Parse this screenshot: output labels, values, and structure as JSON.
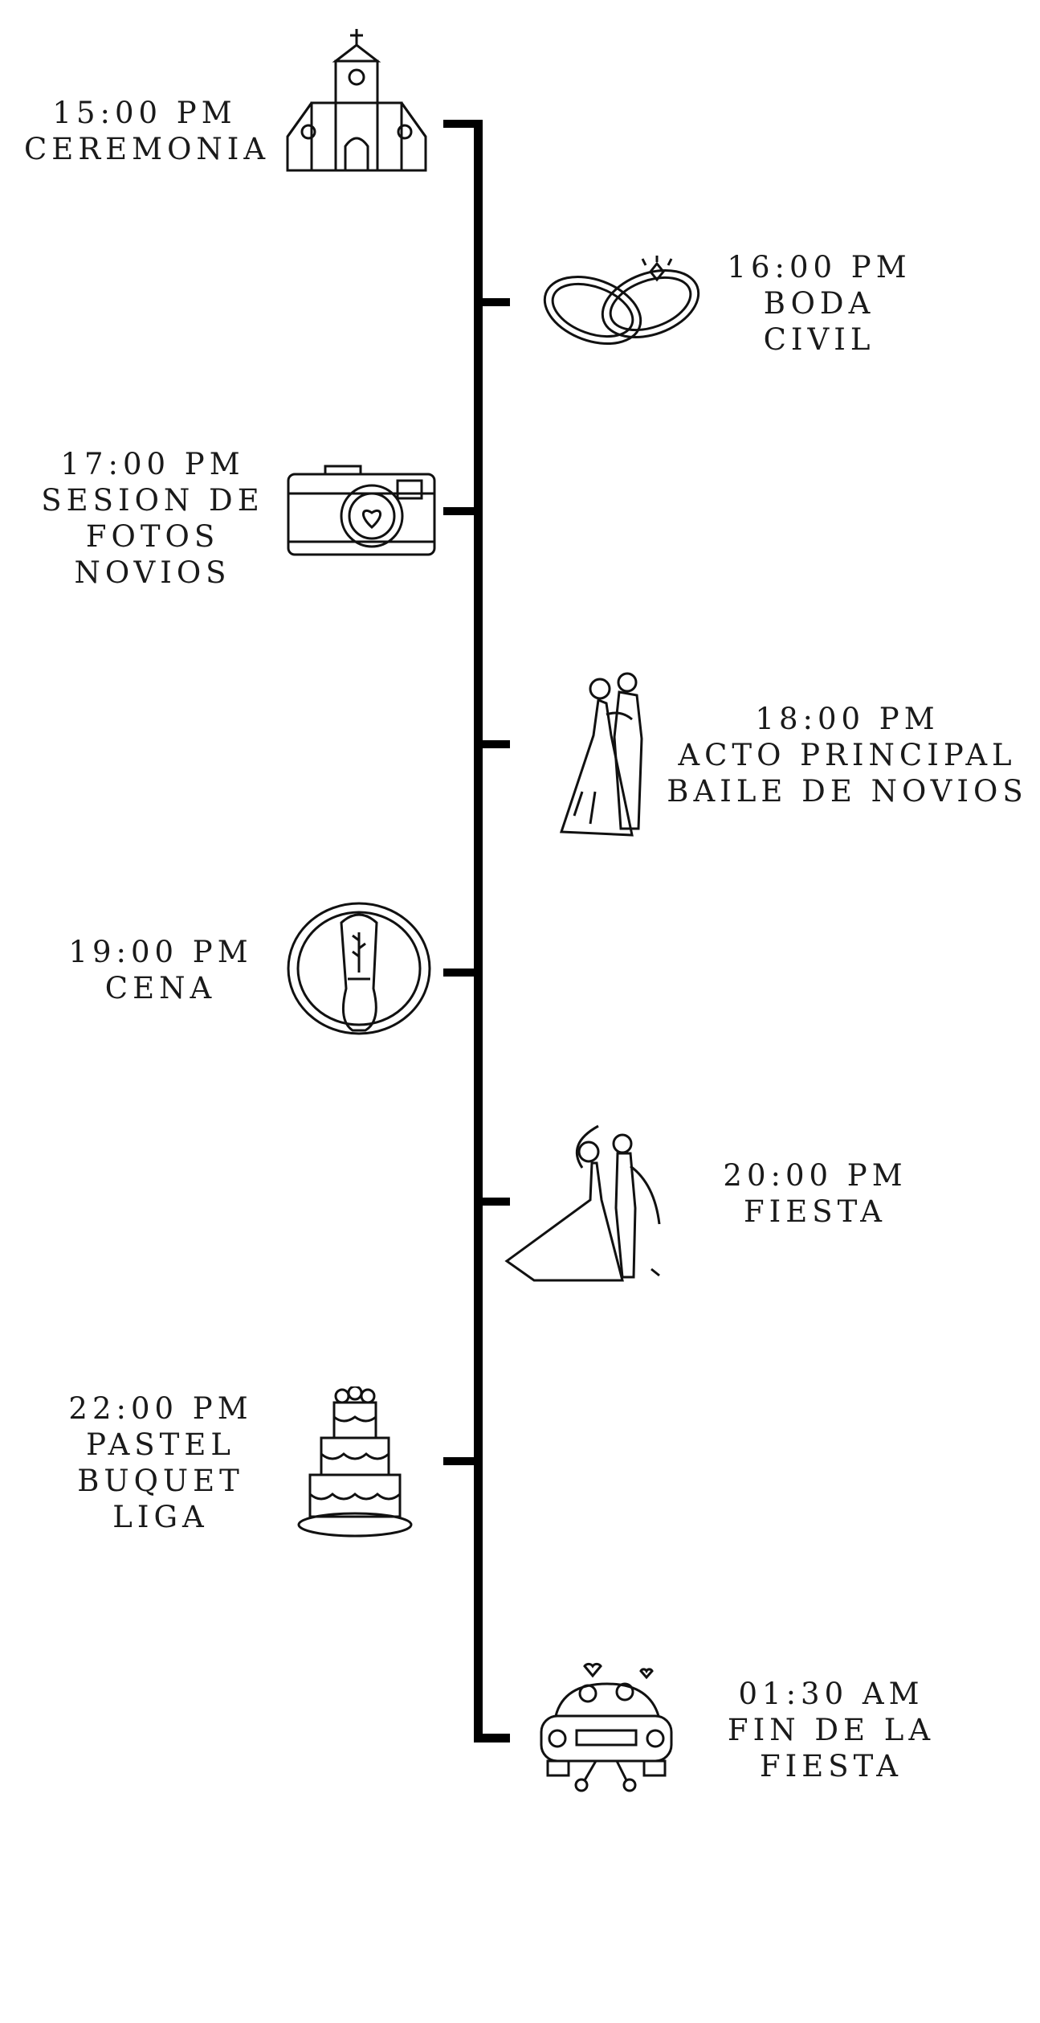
{
  "events": [
    {
      "time": "15:00 PM",
      "lines": [
        "CEREMONIA"
      ],
      "icon": "church-icon",
      "side": "left"
    },
    {
      "time": "16:00 PM",
      "lines": [
        "BODA",
        "CIVIL"
      ],
      "icon": "wedding-rings-icon",
      "side": "right"
    },
    {
      "time": "17:00 PM",
      "lines": [
        "SESION DE",
        "FOTOS",
        "NOVIOS"
      ],
      "icon": "camera-icon",
      "side": "left"
    },
    {
      "time": "18:00 PM",
      "lines": [
        "ACTO PRINCIPAL",
        "BAILE DE NOVIOS"
      ],
      "icon": "couple-dancing-icon",
      "side": "right"
    },
    {
      "time": "19:00 PM",
      "lines": [
        "CENA"
      ],
      "icon": "dinner-plate-icon",
      "side": "left"
    },
    {
      "time": "20:00 PM",
      "lines": [
        "FIESTA"
      ],
      "icon": "couple-party-icon",
      "side": "right"
    },
    {
      "time": "22:00 PM",
      "lines": [
        "PASTEL",
        "BUQUET",
        "LIGA"
      ],
      "icon": "wedding-cake-icon",
      "side": "left"
    },
    {
      "time": "01:30 AM",
      "lines": [
        "FIN DE LA",
        "FIESTA"
      ],
      "icon": "just-married-car-icon",
      "side": "right"
    }
  ],
  "colors": {
    "line": "#000000",
    "text": "#1a1a1a",
    "background": "#ffffff"
  }
}
